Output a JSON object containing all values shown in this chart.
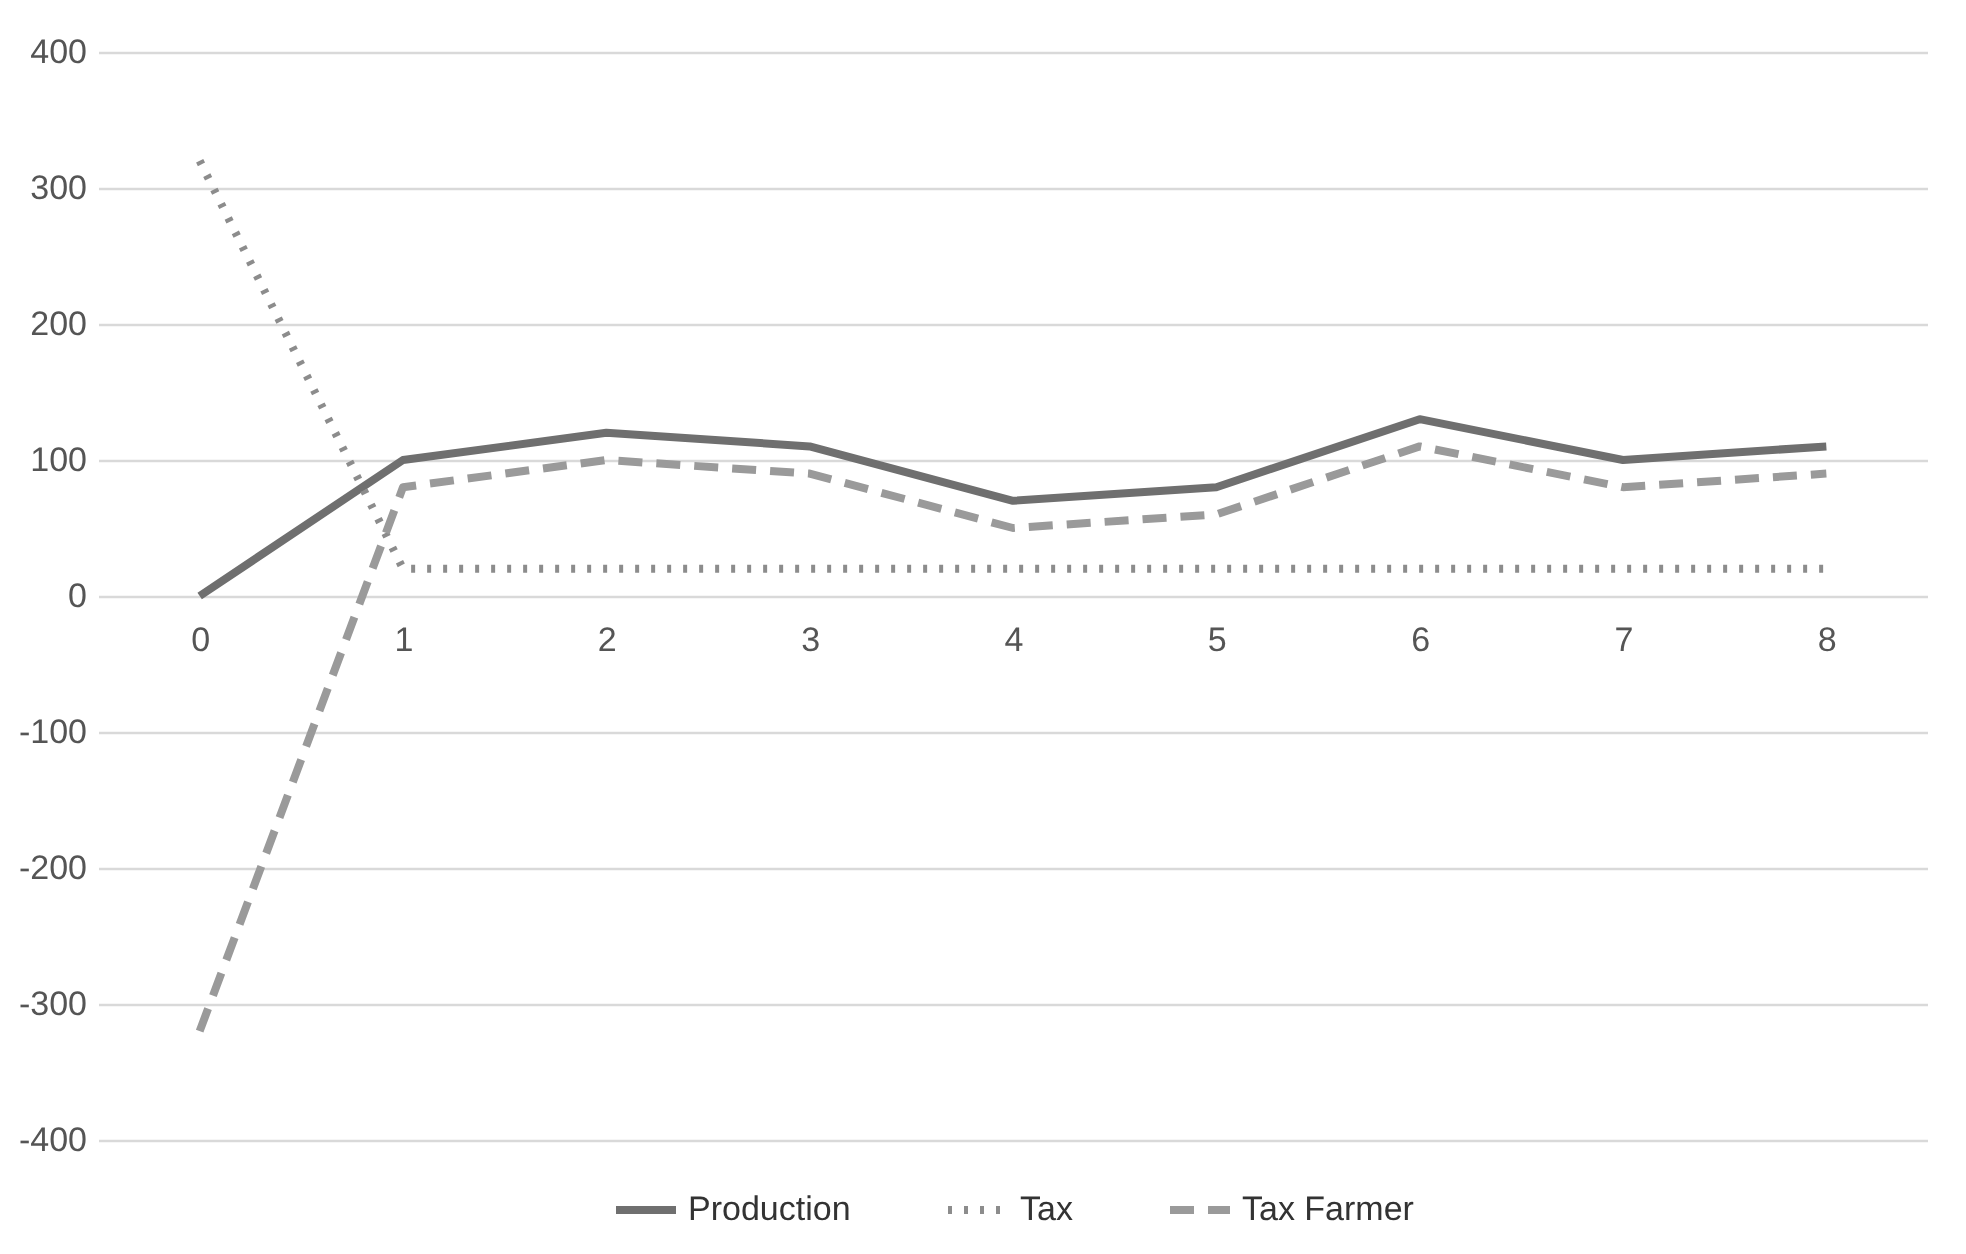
{
  "chart_data": {
    "type": "line",
    "categories": [
      "0",
      "1",
      "2",
      "3",
      "4",
      "5",
      "6",
      "7",
      "8"
    ],
    "series": [
      {
        "name": "Production",
        "color": "#6f6f6f",
        "line_style": "solid",
        "values": [
          0,
          100,
          120,
          110,
          70,
          80,
          130,
          100,
          110
        ]
      },
      {
        "name": "Tax",
        "color": "#8c8c8c",
        "line_style": "dotted",
        "values": [
          320,
          20,
          20,
          20,
          20,
          20,
          20,
          20,
          20
        ]
      },
      {
        "name": "Tax Farmer",
        "color": "#9a9a9a",
        "line_style": "dashed",
        "values": [
          -320,
          80,
          100,
          90,
          50,
          60,
          110,
          80,
          90
        ]
      }
    ],
    "ylim": [
      -400,
      400
    ],
    "yticks": [
      -400,
      -300,
      -200,
      -100,
      0,
      100,
      200,
      300,
      400
    ],
    "grid": "y",
    "legend": "bottom",
    "marker": "none"
  }
}
